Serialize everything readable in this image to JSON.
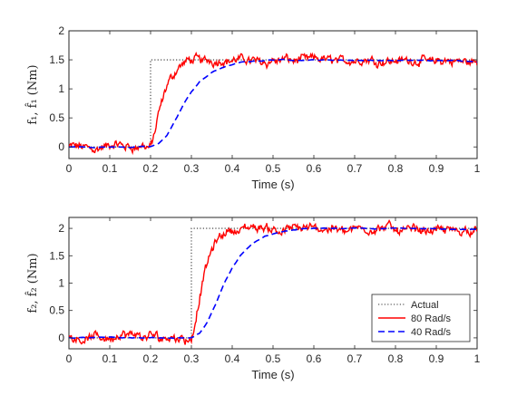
{
  "chart_data": [
    {
      "type": "line",
      "ylabel": "f₁, f̂₁ (Nm)",
      "xlabel": "Time (s)",
      "xlim": [
        0,
        1
      ],
      "ylim": [
        -0.2,
        2
      ],
      "xticks": [
        "0",
        "0.1",
        "0.2",
        "0.3",
        "0.4",
        "0.5",
        "0.6",
        "0.7",
        "0.8",
        "0.9",
        "1"
      ],
      "yticks": [
        "0",
        "0.5",
        "1",
        "1.5",
        "2"
      ],
      "grid": false,
      "series": [
        {
          "name": "Actual",
          "color": "#333333",
          "style": "dotted",
          "x": [
            0,
            0.2,
            0.2,
            1
          ],
          "y": [
            0,
            0,
            1.5,
            1.5
          ]
        },
        {
          "name": "80 Rad/s",
          "color": "#ff0000",
          "style": "solid",
          "x": [
            0,
            0.2,
            0.21,
            0.22,
            0.23,
            0.24,
            0.25,
            0.26,
            0.27,
            0.28,
            0.3,
            0.35,
            0.4,
            0.6,
            0.8,
            1
          ],
          "y": [
            0,
            0,
            0.25,
            0.55,
            0.8,
            1.0,
            1.15,
            1.28,
            1.38,
            1.44,
            1.49,
            1.5,
            1.5,
            1.5,
            1.5,
            1.45
          ]
        },
        {
          "name": "40 Rad/s",
          "color": "#0000ff",
          "style": "dashed",
          "x": [
            0,
            0.2,
            0.22,
            0.24,
            0.26,
            0.28,
            0.3,
            0.32,
            0.35,
            0.38,
            0.42,
            0.46,
            0.5,
            0.6,
            1
          ],
          "y": [
            0,
            0,
            0.05,
            0.2,
            0.45,
            0.72,
            0.95,
            1.12,
            1.28,
            1.38,
            1.45,
            1.48,
            1.5,
            1.5,
            1.48
          ]
        }
      ]
    },
    {
      "type": "line",
      "ylabel": "f₂, f̂₂ (Nm)",
      "xlabel": "Time (s)",
      "xlim": [
        0,
        1
      ],
      "ylim": [
        -0.2,
        2.2
      ],
      "xticks": [
        "0",
        "0.1",
        "0.2",
        "0.3",
        "0.4",
        "0.5",
        "0.6",
        "0.7",
        "0.8",
        "0.9",
        "1"
      ],
      "yticks": [
        "0",
        "0.5",
        "1",
        "1.5",
        "2"
      ],
      "grid": false,
      "legend": {
        "position": "bottom-right",
        "entries": [
          "Actual",
          "80 Rad/s",
          "40 Rad/s"
        ]
      },
      "series": [
        {
          "name": "Actual",
          "color": "#333333",
          "style": "dotted",
          "x": [
            0,
            0.3,
            0.3,
            1
          ],
          "y": [
            0,
            0,
            2,
            2
          ]
        },
        {
          "name": "80 Rad/s",
          "color": "#ff0000",
          "style": "solid",
          "x": [
            0,
            0.3,
            0.31,
            0.32,
            0.33,
            0.34,
            0.35,
            0.36,
            0.37,
            0.38,
            0.4,
            0.45,
            0.6,
            0.8,
            1
          ],
          "y": [
            0,
            0,
            0.3,
            0.75,
            1.1,
            1.38,
            1.58,
            1.73,
            1.84,
            1.92,
            1.98,
            2.0,
            2.0,
            2.0,
            1.95
          ]
        },
        {
          "name": "40 Rad/s",
          "color": "#0000ff",
          "style": "dashed",
          "x": [
            0,
            0.3,
            0.32,
            0.34,
            0.36,
            0.38,
            0.4,
            0.42,
            0.45,
            0.48,
            0.52,
            0.56,
            0.6,
            1
          ],
          "y": [
            0,
            0,
            0.08,
            0.3,
            0.62,
            0.98,
            1.28,
            1.5,
            1.72,
            1.85,
            1.94,
            1.98,
            2.0,
            1.98
          ]
        }
      ]
    }
  ]
}
